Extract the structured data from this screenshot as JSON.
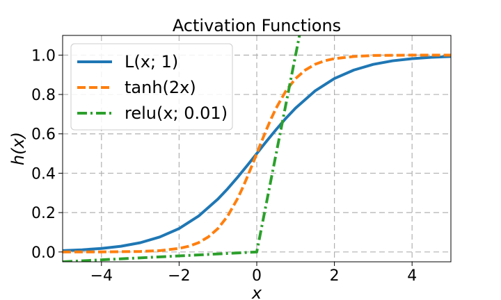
{
  "chart_data": {
    "type": "line",
    "title": "Activation Functions",
    "xlabel": "x",
    "ylabel": "h(x)",
    "xlim": [
      -5,
      5
    ],
    "ylim": [
      -0.05,
      1.1
    ],
    "xticks": [
      -4,
      -2,
      0,
      2,
      4
    ],
    "xtick_labels": [
      "−4",
      "−2",
      "0",
      "2",
      "4"
    ],
    "yticks": [
      0.0,
      0.2,
      0.4,
      0.6,
      0.8,
      1.0
    ],
    "ytick_labels": [
      "0.0",
      "0.2",
      "0.4",
      "0.6",
      "0.8",
      "1.0"
    ],
    "grid": true,
    "legend_position": "top-left",
    "series": [
      {
        "name": "L(x; 1)",
        "color": "#1f77b4",
        "style": "solid",
        "x": [
          -5,
          -4.5,
          -4,
          -3.5,
          -3,
          -2.5,
          -2,
          -1.5,
          -1,
          -0.75,
          -0.5,
          -0.25,
          0,
          0.25,
          0.5,
          0.75,
          1,
          1.5,
          2,
          2.5,
          3,
          3.5,
          4,
          4.5,
          5
        ],
        "y": [
          0.0067,
          0.011,
          0.018,
          0.029,
          0.047,
          0.076,
          0.119,
          0.182,
          0.269,
          0.321,
          0.378,
          0.438,
          0.5,
          0.562,
          0.622,
          0.679,
          0.731,
          0.818,
          0.881,
          0.924,
          0.953,
          0.971,
          0.982,
          0.989,
          0.993
        ]
      },
      {
        "name": "tanh(2x)",
        "color": "#ff7f0e",
        "style": "dashed",
        "x": [
          -5,
          -4,
          -3,
          -2.5,
          -2,
          -1.75,
          -1.5,
          -1.25,
          -1,
          -0.75,
          -0.5,
          -0.375,
          -0.25,
          -0.125,
          0,
          0.125,
          0.25,
          0.375,
          0.5,
          0.75,
          1,
          1.25,
          1.5,
          1.75,
          2,
          2.5,
          3,
          4,
          5
        ],
        "y": [
          0.0,
          0.0003,
          0.0025,
          0.0067,
          0.018,
          0.029,
          0.047,
          0.076,
          0.119,
          0.182,
          0.269,
          0.321,
          0.378,
          0.438,
          0.5,
          0.562,
          0.622,
          0.679,
          0.731,
          0.818,
          0.881,
          0.924,
          0.953,
          0.971,
          0.982,
          0.993,
          0.998,
          1.0,
          1.0
        ]
      },
      {
        "name": "relu(x; 0.01)",
        "color": "#2ca02c",
        "style": "dashdot",
        "x": [
          -5,
          0,
          1.1
        ],
        "y": [
          -0.05,
          0.0,
          1.1
        ]
      }
    ]
  }
}
